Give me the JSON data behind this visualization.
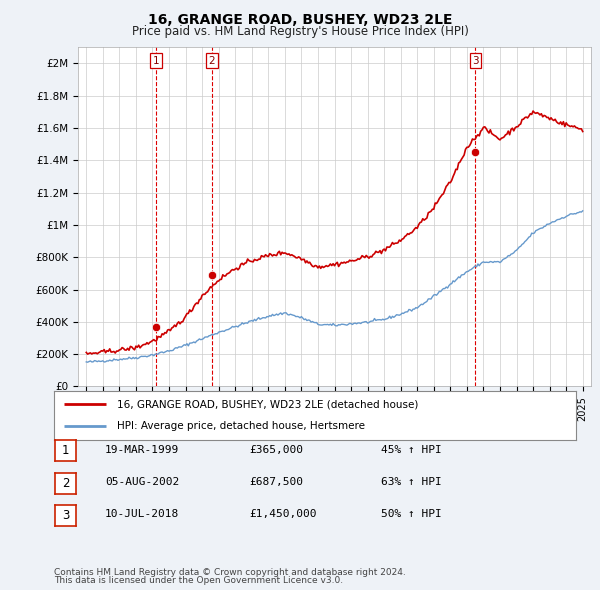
{
  "title": "16, GRANGE ROAD, BUSHEY, WD23 2LE",
  "subtitle": "Price paid vs. HM Land Registry's House Price Index (HPI)",
  "legend_line1": "16, GRANGE ROAD, BUSHEY, WD23 2LE (detached house)",
  "legend_line2": "HPI: Average price, detached house, Hertsmere",
  "footnote1": "Contains HM Land Registry data © Crown copyright and database right 2024.",
  "footnote2": "This data is licensed under the Open Government Licence v3.0.",
  "transactions": [
    {
      "num": 1,
      "date": "19-MAR-1999",
      "price": "£365,000",
      "change": "45% ↑ HPI",
      "year": 1999.21
    },
    {
      "num": 2,
      "date": "05-AUG-2002",
      "price": "£687,500",
      "change": "63% ↑ HPI",
      "year": 2002.59
    },
    {
      "num": 3,
      "date": "10-JUL-2018",
      "price": "£1,450,000",
      "change": "50% ↑ HPI",
      "year": 2018.52
    }
  ],
  "vline_years": [
    1999.21,
    2002.59,
    2018.52
  ],
  "sale_points": [
    {
      "year": 1999.21,
      "price": 365000
    },
    {
      "year": 2002.59,
      "price": 687500
    },
    {
      "year": 2018.52,
      "price": 1450000
    }
  ],
  "red_line_color": "#cc0000",
  "blue_line_color": "#6699cc",
  "vline_color": "#dd0000",
  "background_color": "#eef2f7",
  "plot_bg_color": "#ffffff",
  "grid_color": "#cccccc",
  "ylim": [
    0,
    2100000
  ],
  "xlim_start": 1994.5,
  "xlim_end": 2025.5,
  "yticks": [
    0,
    200000,
    400000,
    600000,
    800000,
    1000000,
    1200000,
    1400000,
    1600000,
    1800000,
    2000000
  ],
  "ytick_labels": [
    "£0",
    "£200K",
    "£400K",
    "£600K",
    "£800K",
    "£1M",
    "£1.2M",
    "£1.4M",
    "£1.6M",
    "£1.8M",
    "£2M"
  ],
  "xtick_years": [
    1995,
    1996,
    1997,
    1998,
    1999,
    2000,
    2001,
    2002,
    2003,
    2004,
    2005,
    2006,
    2007,
    2008,
    2009,
    2010,
    2011,
    2012,
    2013,
    2014,
    2015,
    2016,
    2017,
    2018,
    2019,
    2020,
    2021,
    2022,
    2023,
    2024,
    2025
  ],
  "hpi_year_points": [
    1995,
    1996,
    1997,
    1998,
    1999,
    2000,
    2001,
    2002,
    2003,
    2004,
    2005,
    2006,
    2007,
    2008,
    2009,
    2010,
    2011,
    2012,
    2013,
    2014,
    2015,
    2016,
    2017,
    2018,
    2019,
    2020,
    2021,
    2022,
    2023,
    2024,
    2025
  ],
  "hpi_base": [
    150000,
    158000,
    168000,
    178000,
    195000,
    220000,
    255000,
    295000,
    335000,
    370000,
    405000,
    435000,
    455000,
    425000,
    385000,
    378000,
    388000,
    398000,
    415000,
    448000,
    488000,
    558000,
    635000,
    710000,
    770000,
    770000,
    840000,
    950000,
    1010000,
    1055000,
    1085000
  ],
  "prop_year_points": [
    1995,
    1996,
    1997,
    1998,
    1999,
    2000,
    2001,
    2002,
    2003,
    2004,
    2005,
    2006,
    2007,
    2008,
    2009,
    2010,
    2011,
    2012,
    2013,
    2014,
    2015,
    2016,
    2017,
    2018,
    2019,
    2020,
    2021,
    2022,
    2023,
    2024,
    2025
  ],
  "prop_base": [
    200000,
    212000,
    225000,
    240000,
    280000,
    340000,
    430000,
    560000,
    660000,
    730000,
    780000,
    810000,
    830000,
    790000,
    740000,
    755000,
    775000,
    805000,
    845000,
    905000,
    985000,
    1105000,
    1265000,
    1480000,
    1600000,
    1530000,
    1610000,
    1700000,
    1660000,
    1620000,
    1590000
  ]
}
